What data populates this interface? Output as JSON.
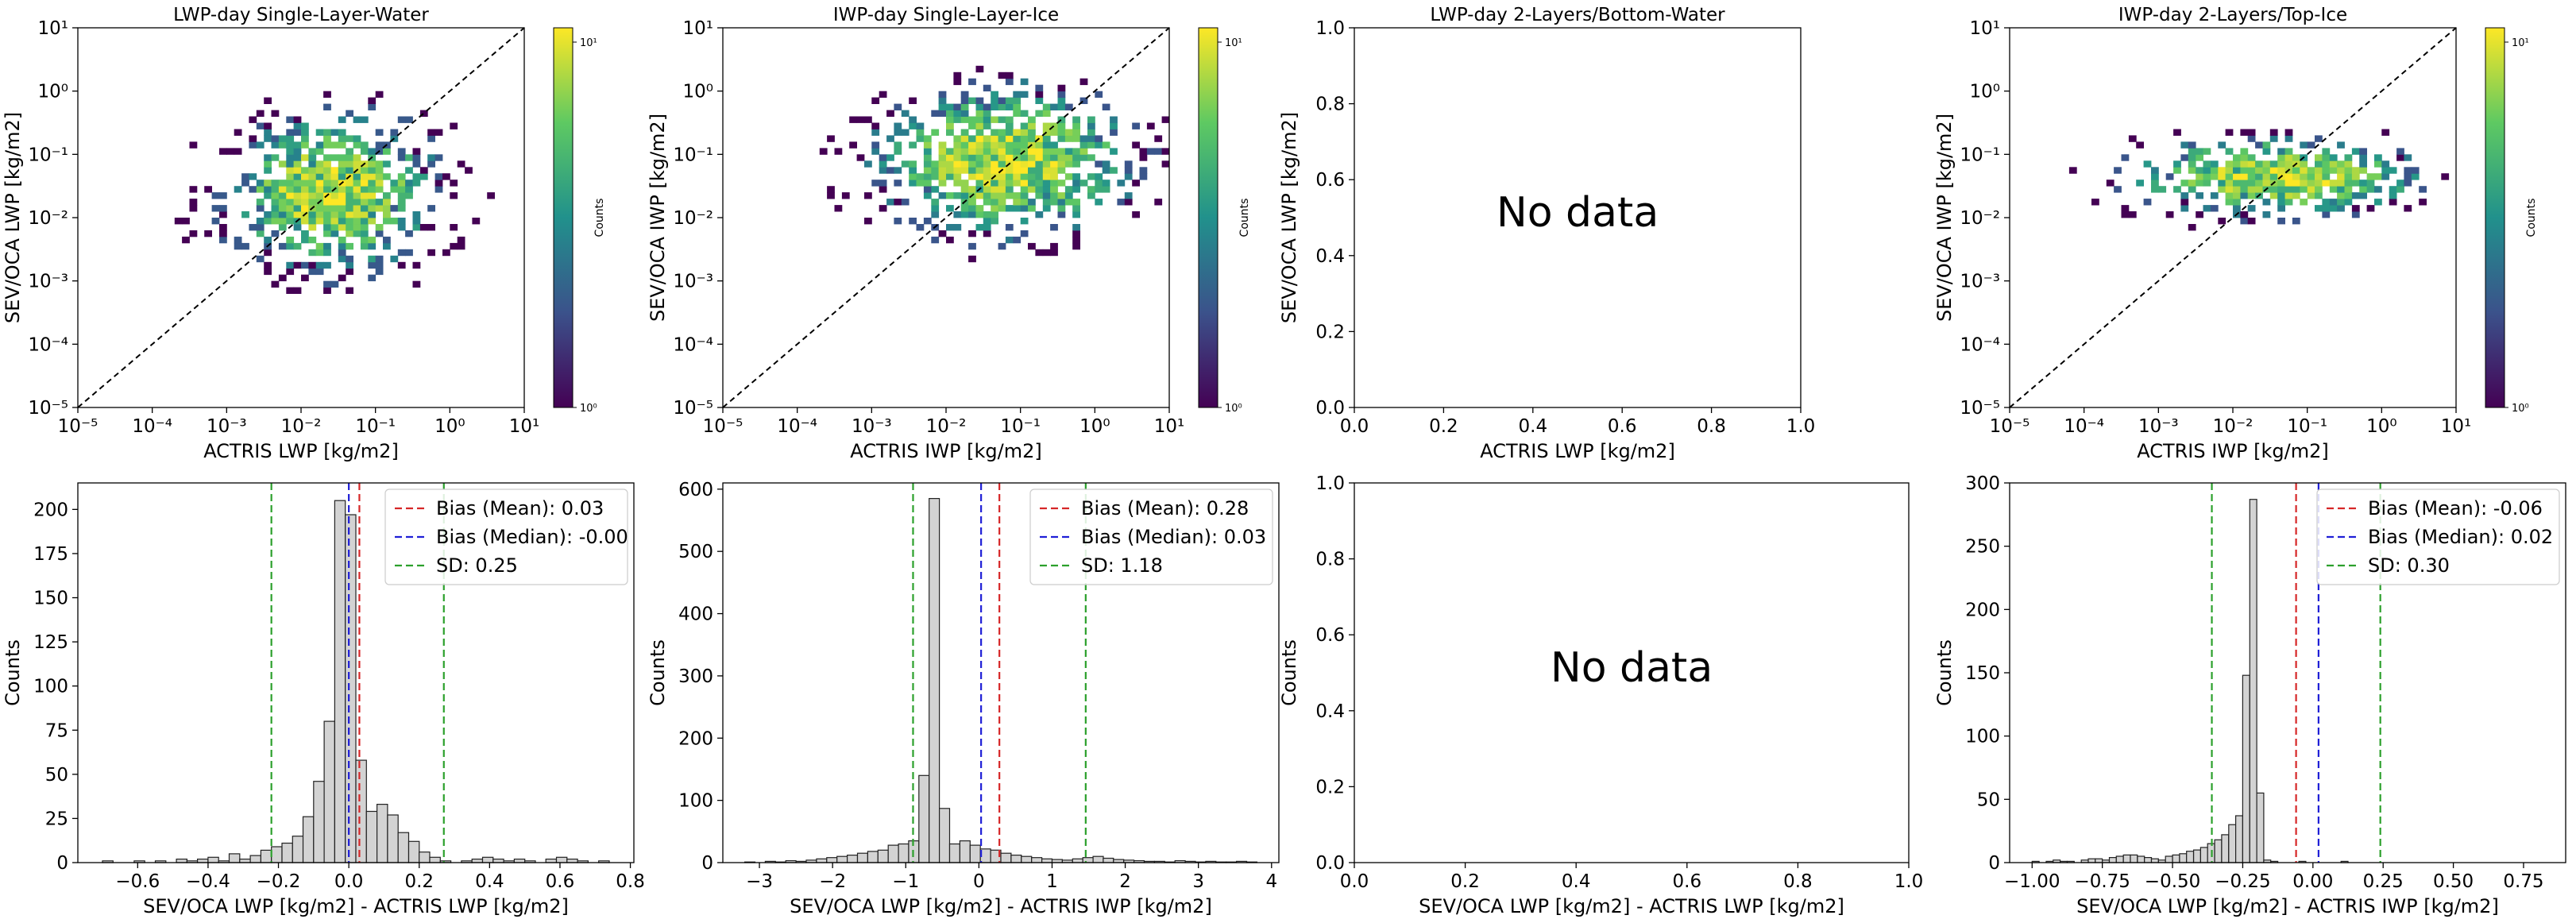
{
  "colorbar_label": "Counts",
  "colorbar_ticks": [
    "10¹",
    "10⁰"
  ],
  "no_data_text": "No data",
  "colors": {
    "mean_line": "#d62728",
    "median_line": "#1f1fd6",
    "sd_line": "#2ca02c",
    "hist_fill": "#d3d3d3",
    "hist_edge": "#222222",
    "identity_line": "#000000",
    "viridis": [
      "#440154",
      "#3b528b",
      "#21918c",
      "#5ec962",
      "#fde725"
    ]
  },
  "chart_data": [
    {
      "type": "heatmap",
      "title": "LWP-day Single-Layer-Water",
      "xlabel": "ACTRIS LWP [kg/m2]",
      "ylabel": "SEV/OCA LWP [kg/m2]",
      "scale": "log",
      "xlim": [
        1e-05,
        10
      ],
      "ylim": [
        1e-05,
        10
      ],
      "xticks": [
        "10⁻⁵",
        "10⁻⁴",
        "10⁻³",
        "10⁻²",
        "10⁻¹",
        "10⁰",
        "10¹"
      ],
      "yticks": [
        "10⁻⁵",
        "10⁻⁴",
        "10⁻³",
        "10⁻²",
        "10⁻¹",
        "10⁰",
        "10¹"
      ],
      "identity_line": true,
      "colorbar": true,
      "cluster": {
        "x_log_center": -1.6,
        "y_log_center": -1.6,
        "x_log_spread": 0.85,
        "y_log_spread": 0.7,
        "max_count": 12
      },
      "has_data": true
    },
    {
      "type": "heatmap",
      "title": "IWP-day Single-Layer-Ice",
      "xlabel": "ACTRIS IWP [kg/m2]",
      "ylabel": "SEV/OCA IWP [kg/m2]",
      "scale": "log",
      "xlim": [
        1e-05,
        10
      ],
      "ylim": [
        1e-05,
        10
      ],
      "xticks": [
        "10⁻⁵",
        "10⁻⁴",
        "10⁻³",
        "10⁻²",
        "10⁻¹",
        "10⁰",
        "10¹"
      ],
      "yticks": [
        "10⁻⁵",
        "10⁻⁴",
        "10⁻³",
        "10⁻²",
        "10⁻¹",
        "10⁰",
        "10¹"
      ],
      "identity_line": true,
      "colorbar": true,
      "cluster": {
        "x_log_center": -1.2,
        "y_log_center": -1.1,
        "x_log_spread": 1.0,
        "y_log_spread": 0.65,
        "max_count": 14
      },
      "has_data": true
    },
    {
      "type": "heatmap",
      "title": "LWP-day 2-Layers/Bottom-Water",
      "xlabel": "ACTRIS LWP [kg/m2]",
      "ylabel": "SEV/OCA LWP [kg/m2]",
      "scale": "linear",
      "xlim": [
        0,
        1
      ],
      "ylim": [
        0,
        1
      ],
      "xticks": [
        "0.0",
        "0.2",
        "0.4",
        "0.6",
        "0.8",
        "1.0"
      ],
      "yticks": [
        "0.0",
        "0.2",
        "0.4",
        "0.6",
        "0.8",
        "1.0"
      ],
      "identity_line": false,
      "colorbar": false,
      "has_data": false
    },
    {
      "type": "heatmap",
      "title": "IWP-day 2-Layers/Top-Ice",
      "xlabel": "ACTRIS IWP [kg/m2]",
      "ylabel": "SEV/OCA IWP [kg/m2]",
      "scale": "log",
      "xlim": [
        1e-05,
        10
      ],
      "ylim": [
        1e-05,
        10
      ],
      "xticks": [
        "10⁻⁵",
        "10⁻⁴",
        "10⁻³",
        "10⁻²",
        "10⁻¹",
        "10⁰",
        "10¹"
      ],
      "yticks": [
        "10⁻⁵",
        "10⁻⁴",
        "10⁻³",
        "10⁻²",
        "10⁻¹",
        "10⁰",
        "10¹"
      ],
      "identity_line": true,
      "colorbar": true,
      "cluster": {
        "x_log_center": -1.4,
        "y_log_center": -1.35,
        "x_log_spread": 1.1,
        "y_log_spread": 0.35,
        "max_count": 14
      },
      "has_data": true
    },
    {
      "type": "bar",
      "title": "",
      "xlabel": "SEV/OCA LWP [kg/m2] - ACTRIS LWP [kg/m2]",
      "ylabel": "Counts",
      "xlim": [
        -0.77,
        0.81
      ],
      "ylim": [
        0,
        215
      ],
      "xticks": [
        -0.6,
        -0.4,
        -0.2,
        0.0,
        0.2,
        0.4,
        0.6,
        0.8
      ],
      "xtick_labels": [
        "−0.6",
        "−0.4",
        "−0.2",
        "0.0",
        "0.2",
        "0.4",
        "0.6",
        "0.8"
      ],
      "yticks": [
        0,
        25,
        50,
        75,
        100,
        125,
        150,
        175,
        200
      ],
      "bin_start": -0.7,
      "bin_width": 0.03,
      "values": [
        1,
        0,
        0,
        1,
        0,
        1,
        0,
        2,
        1,
        2,
        3,
        1,
        5,
        2,
        4,
        7,
        9,
        11,
        15,
        26,
        46,
        80,
        205,
        197,
        58,
        29,
        33,
        27,
        17,
        12,
        6,
        3,
        1,
        0,
        1,
        2,
        3,
        2,
        1,
        2,
        1,
        0,
        2,
        3,
        2,
        1,
        0,
        1
      ],
      "lines": [
        {
          "label": "Bias (Mean): 0.03",
          "x": 0.03,
          "kind": "mean"
        },
        {
          "label": "Bias (Median): -0.00",
          "x": 0.0,
          "kind": "median"
        },
        {
          "label": "SD: 0.25",
          "x": -0.22,
          "kind": "sd"
        },
        {
          "label": "",
          "x": 0.27,
          "kind": "sd"
        }
      ],
      "legend": "top-right",
      "has_data": true
    },
    {
      "type": "bar",
      "title": "",
      "xlabel": "SEV/OCA LWP [kg/m2] - ACTRIS IWP [kg/m2]",
      "ylabel": "Counts",
      "xlim": [
        -3.5,
        4.1
      ],
      "ylim": [
        0,
        610
      ],
      "xticks": [
        -3,
        -2,
        -1,
        0,
        1,
        2,
        3,
        4
      ],
      "xtick_labels": [
        "−3",
        "−2",
        "−1",
        "0",
        "1",
        "2",
        "3",
        "4"
      ],
      "yticks": [
        0,
        100,
        200,
        300,
        400,
        500,
        600
      ],
      "bin_start": -3.2,
      "bin_width": 0.14,
      "values": [
        1,
        0,
        2,
        1,
        3,
        2,
        4,
        6,
        8,
        10,
        12,
        15,
        18,
        20,
        28,
        30,
        35,
        140,
        585,
        87,
        30,
        35,
        28,
        22,
        20,
        15,
        12,
        10,
        8,
        6,
        5,
        4,
        6,
        8,
        10,
        7,
        5,
        4,
        3,
        2,
        2,
        1,
        3,
        2,
        1,
        2,
        1,
        1,
        2,
        1
      ],
      "lines": [
        {
          "label": "Bias (Mean): 0.28",
          "x": 0.28,
          "kind": "mean"
        },
        {
          "label": "Bias (Median): 0.03",
          "x": 0.03,
          "kind": "median"
        },
        {
          "label": "SD: 1.18",
          "x": -0.9,
          "kind": "sd"
        },
        {
          "label": "",
          "x": 1.46,
          "kind": "sd"
        }
      ],
      "legend": "top-right",
      "has_data": true
    },
    {
      "type": "bar",
      "title": "",
      "xlabel": "SEV/OCA LWP [kg/m2] - ACTRIS LWP [kg/m2]",
      "ylabel": "Counts",
      "xlim": [
        0,
        1
      ],
      "ylim": [
        0,
        1
      ],
      "xticks": [
        0.0,
        0.2,
        0.4,
        0.6,
        0.8,
        1.0
      ],
      "xtick_labels": [
        "0.0",
        "0.2",
        "0.4",
        "0.6",
        "0.8",
        "1.0"
      ],
      "yticks": [
        0.0,
        0.2,
        0.4,
        0.6,
        0.8,
        1.0
      ],
      "ytick_labels": [
        "0.0",
        "0.2",
        "0.4",
        "0.6",
        "0.8",
        "1.0"
      ],
      "has_data": false
    },
    {
      "type": "bar",
      "title": "",
      "xlabel": "SEV/OCA LWP [kg/m2] - ACTRIS IWP [kg/m2]",
      "ylabel": "Counts",
      "xlim": [
        -1.08,
        0.9
      ],
      "ylim": [
        0,
        300
      ],
      "xticks": [
        -1.0,
        -0.75,
        -0.5,
        -0.25,
        0.0,
        0.25,
        0.5,
        0.75
      ],
      "xtick_labels": [
        "−1.00",
        "−0.75",
        "−0.50",
        "−0.25",
        "0.00",
        "0.25",
        "0.50",
        "0.75"
      ],
      "yticks": [
        0,
        50,
        100,
        150,
        200,
        250,
        300
      ],
      "bin_start": -1.0,
      "bin_width": 0.025,
      "values": [
        1,
        0,
        1,
        2,
        1,
        1,
        0,
        2,
        3,
        3,
        2,
        4,
        5,
        6,
        6,
        5,
        4,
        3,
        2,
        5,
        6,
        7,
        9,
        10,
        12,
        15,
        18,
        22,
        30,
        37,
        148,
        287,
        55,
        2,
        1,
        0,
        0,
        0,
        1,
        0,
        0,
        0,
        0,
        0,
        1,
        0,
        0,
        0,
        0,
        0
      ],
      "lines": [
        {
          "label": "Bias (Mean): -0.06",
          "x": -0.06,
          "kind": "mean"
        },
        {
          "label": "Bias (Median): 0.02",
          "x": 0.02,
          "kind": "median"
        },
        {
          "label": "SD: 0.30",
          "x": -0.36,
          "kind": "sd"
        },
        {
          "label": "",
          "x": 0.24,
          "kind": "sd"
        }
      ],
      "legend": "top-right",
      "has_data": true
    }
  ]
}
